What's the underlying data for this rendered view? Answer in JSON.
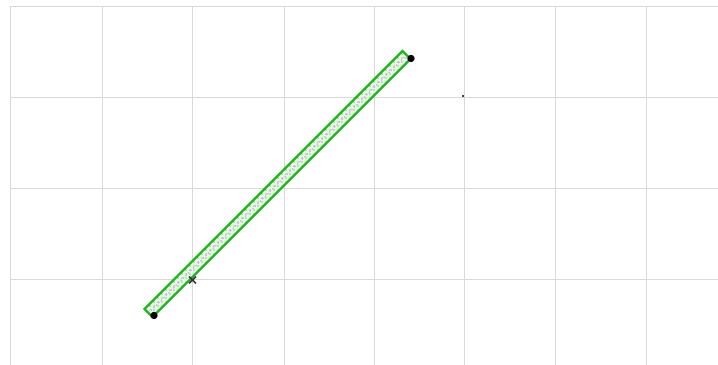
{
  "canvas": {
    "background": "#ffffff",
    "grid_color": "#d9d9d9",
    "grid_visible": true
  },
  "wall": {
    "element_type": "wall",
    "selected": true,
    "outline_color": "#1fb41f",
    "fill_pattern": "dotted",
    "fill_color": "#e9f5e9",
    "endpoint_color": "#000000",
    "endpoint_names": [
      "wall-endpoint-start-handle",
      "wall-endpoint-end-handle"
    ]
  },
  "markers": {
    "reference_point_icon": "cross-mark-icon",
    "reference_point_color": "#333333",
    "snap_dot_icon": "snap-point-icon"
  }
}
